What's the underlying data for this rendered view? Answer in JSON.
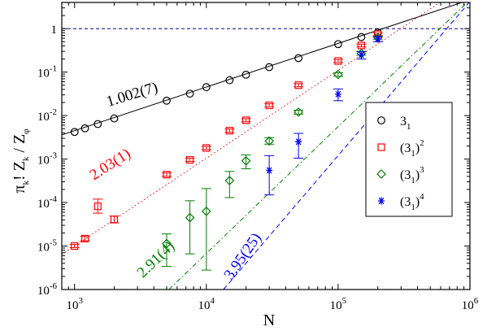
{
  "chart_data": {
    "type": "scatter",
    "x_scale": "log",
    "y_scale": "log",
    "xlim": [
      800,
      1000000
    ],
    "ylim": [
      1e-06,
      4
    ],
    "xlabel": "N",
    "ylabel": "π_k! Z_k / Z_φ",
    "ylabel_parts": {
      "a": "π",
      "b": "k",
      "c": "! Z",
      "d": "k",
      "e": " / Z",
      "f": "φ"
    },
    "x_major_ticks": [
      {
        "value": 1000,
        "base": "10",
        "exp": "3"
      },
      {
        "value": 10000,
        "base": "10",
        "exp": "4"
      },
      {
        "value": 100000,
        "base": "10",
        "exp": "5"
      },
      {
        "value": 1000000,
        "base": "10",
        "exp": "6"
      }
    ],
    "y_major_ticks": [
      {
        "value": 1e-06,
        "base": "10",
        "exp": "-6"
      },
      {
        "value": 1e-05,
        "base": "10",
        "exp": "-5"
      },
      {
        "value": 0.0001,
        "base": "10",
        "exp": "-4"
      },
      {
        "value": 0.001,
        "base": "10",
        "exp": "-3"
      },
      {
        "value": 0.01,
        "base": "10",
        "exp": "-2"
      },
      {
        "value": 0.1,
        "base": "10",
        "exp": "-1"
      },
      {
        "value": 1,
        "base": "1",
        "exp": ""
      }
    ],
    "reference_line_y": 1,
    "reference_color": "#00008b",
    "legend_position": "right",
    "series": [
      {
        "name": "3_1",
        "legend": {
          "base": "3",
          "sub": "1",
          "sup": ""
        },
        "color": "#000000",
        "marker": "circle",
        "line_style": "solid",
        "fit": {
          "slope_label": "1.002(7)",
          "x0": 800,
          "y0": 0.0036,
          "x1": 1000000,
          "y1": 4.6
        },
        "points": [
          {
            "x": 1000,
            "y": 0.0042
          },
          {
            "x": 1200,
            "y": 0.0051
          },
          {
            "x": 1500,
            "y": 0.0064
          },
          {
            "x": 2000,
            "y": 0.0086
          },
          {
            "x": 5000,
            "y": 0.022
          },
          {
            "x": 7500,
            "y": 0.032
          },
          {
            "x": 10000,
            "y": 0.045
          },
          {
            "x": 15000,
            "y": 0.065
          },
          {
            "x": 20000,
            "y": 0.087
          },
          {
            "x": 30000,
            "y": 0.13
          },
          {
            "x": 50000,
            "y": 0.21
          },
          {
            "x": 100000,
            "y": 0.44
          },
          {
            "x": 150000,
            "y": 0.64
          },
          {
            "x": 200000,
            "y": 0.82
          }
        ]
      },
      {
        "name": "(3_1)^2",
        "legend": {
          "base": "(3",
          "sub": "1",
          "sup": "2"
        },
        "color": "#ff0000",
        "marker": "square",
        "line_style": "dotted",
        "fit": {
          "slope_label": "2.03(1)",
          "x0": 800,
          "y0": 6.4e-06,
          "x1": 1000000,
          "y1": 11.5
        },
        "points": [
          {
            "x": 1000,
            "y": 1e-05,
            "lo": 9.2e-06,
            "hi": 1.09e-05
          },
          {
            "x": 1200,
            "y": 1.48e-05,
            "lo": 1.32e-05,
            "hi": 1.66e-05
          },
          {
            "x": 1500,
            "y": 8.2e-05,
            "lo": 5.7e-05,
            "hi": 0.00012
          },
          {
            "x": 2000,
            "y": 4.1e-05,
            "lo": 3.4e-05,
            "hi": 4.9e-05
          },
          {
            "x": 5000,
            "y": 0.00044,
            "lo": 0.0004,
            "hi": 0.00048
          },
          {
            "x": 7500,
            "y": 0.00096,
            "lo": 0.00088,
            "hi": 0.00105
          },
          {
            "x": 10000,
            "y": 0.0018,
            "lo": 0.00166,
            "hi": 0.00196
          },
          {
            "x": 15000,
            "y": 0.0045,
            "lo": 0.0041,
            "hi": 0.0049
          },
          {
            "x": 20000,
            "y": 0.0078,
            "lo": 0.0072,
            "hi": 0.0085
          },
          {
            "x": 30000,
            "y": 0.0172,
            "lo": 0.0159,
            "hi": 0.0187
          },
          {
            "x": 50000,
            "y": 0.05,
            "lo": 0.046,
            "hi": 0.054
          },
          {
            "x": 100000,
            "y": 0.18,
            "lo": 0.166,
            "hi": 0.195
          },
          {
            "x": 150000,
            "y": 0.41,
            "lo": 0.38,
            "hi": 0.44
          },
          {
            "x": 200000,
            "y": 0.74,
            "lo": 0.69,
            "hi": 0.79
          }
        ]
      },
      {
        "name": "(3_1)^3",
        "legend": {
          "base": "(3",
          "sub": "1",
          "sup": "3"
        },
        "color": "#008000",
        "marker": "diamond",
        "line_style": "dash-dot",
        "fit": {
          "slope_label": "2.91(4)",
          "x0": 5200,
          "y0": 1e-06,
          "x1": 1000000,
          "y1": 4.6
        },
        "points": [
          {
            "x": 5000,
            "y": 1.14e-05,
            "lo": 3.4e-06,
            "hi": 1.9e-05
          },
          {
            "x": 7500,
            "y": 4.5e-05,
            "lo": 6.6e-06,
            "hi": 0.00011
          },
          {
            "x": 10000,
            "y": 6.3e-05,
            "lo": 2.8e-06,
            "hi": 0.00021
          },
          {
            "x": 15000,
            "y": 0.00032,
            "lo": 0.00013,
            "hi": 0.00052
          },
          {
            "x": 20000,
            "y": 0.00091,
            "lo": 0.0006,
            "hi": 0.00125
          },
          {
            "x": 30000,
            "y": 0.0026,
            "lo": 0.0022,
            "hi": 0.0031
          },
          {
            "x": 50000,
            "y": 0.012,
            "lo": 0.0108,
            "hi": 0.0133
          },
          {
            "x": 100000,
            "y": 0.088,
            "lo": 0.08,
            "hi": 0.097
          },
          {
            "x": 150000,
            "y": 0.27,
            "lo": 0.245,
            "hi": 0.295
          },
          {
            "x": 200000,
            "y": 0.62,
            "lo": 0.57,
            "hi": 0.67
          }
        ]
      },
      {
        "name": "(3_1)^4",
        "legend": {
          "base": "(3",
          "sub": "1",
          "sup": "4"
        },
        "color": "#0000ff",
        "marker": "asterisk",
        "line_style": "dashed",
        "fit": {
          "slope_label": "3.95(25)",
          "x0": 13500,
          "y0": 1e-06,
          "x1": 1000000,
          "y1": 4.2
        },
        "points": [
          {
            "x": 30000,
            "y": 0.00055,
            "lo": 0.00015,
            "hi": 0.0012
          },
          {
            "x": 50000,
            "y": 0.0025,
            "lo": 0.00105,
            "hi": 0.0039
          },
          {
            "x": 100000,
            "y": 0.031,
            "lo": 0.022,
            "hi": 0.041
          },
          {
            "x": 150000,
            "y": 0.25,
            "lo": 0.2,
            "hi": 0.3
          },
          {
            "x": 200000,
            "y": 0.58,
            "lo": 0.5,
            "hi": 0.66
          }
        ]
      }
    ],
    "slope_annotations": [
      {
        "series": 0,
        "text": "1.002(7)",
        "x": 1800,
        "y": 0.016,
        "rotate": -17
      },
      {
        "series": 1,
        "text": "2.03(1)",
        "x": 1400,
        "y": 0.00032,
        "rotate": -33
      },
      {
        "series": 2,
        "text": "2.91(4)",
        "x": 3300,
        "y": 1.8e-06,
        "rotate": -44
      },
      {
        "series": 3,
        "text": "3.95(25)",
        "x": 15500,
        "y": 1.6e-06,
        "rotate": -55
      }
    ]
  }
}
